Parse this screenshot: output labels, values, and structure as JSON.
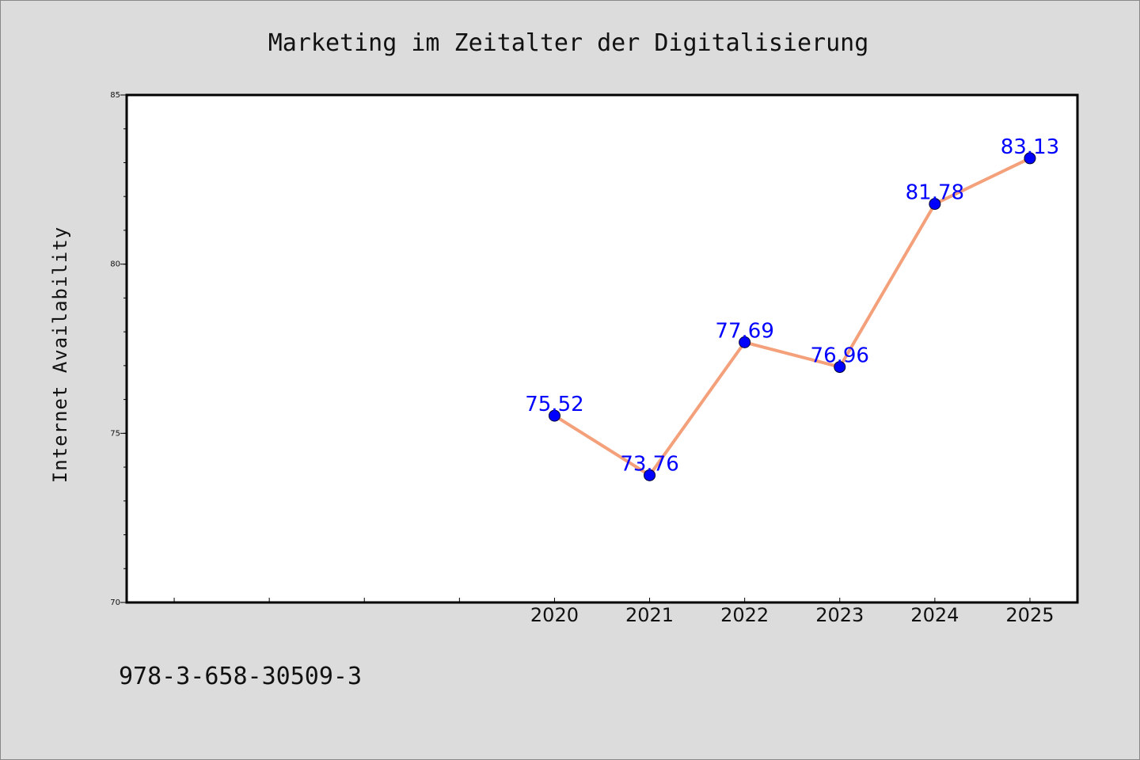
{
  "chart_data": {
    "type": "line",
    "title": "Marketing im Zeitalter der Digitalisierung",
    "xlabel": "",
    "ylabel": "Internet Availability",
    "x": [
      "2020",
      "2021",
      "2022",
      "2023",
      "2024",
      "2025"
    ],
    "values": [
      75.52,
      73.76,
      77.69,
      76.96,
      81.78,
      83.13
    ],
    "data_labels": [
      "75.52",
      "73.76",
      "77.69",
      "76.96",
      "81.78",
      "83.13"
    ],
    "ylim": [
      70,
      85
    ],
    "yticks": [
      "70",
      "75",
      "80",
      "85"
    ],
    "x_slots": 10,
    "grid": false,
    "line_color": "#f4a07a",
    "marker_color": "#0000ff",
    "label_color": "#0000ff",
    "plot_background": "#ffffff",
    "page_background": "#dcdcdc"
  },
  "footer": {
    "isbn": "978-3-658-30509-3"
  }
}
